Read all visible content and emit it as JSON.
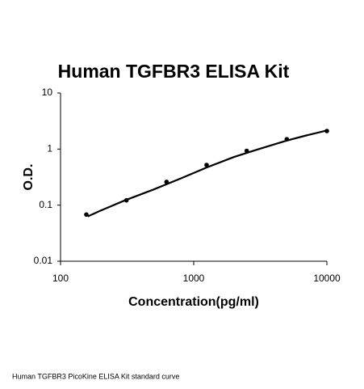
{
  "chart_data": {
    "type": "scatter",
    "title": "Human TGFBR3 ELISA Kit",
    "x_label": "Concentration(pg/ml)",
    "y_label": "O.D.",
    "caption": "Human TGFBR3 PicoKine ELISA Kit standard curve",
    "log_x": true,
    "log_y": true,
    "x": [
      156.25,
      312.5,
      625,
      1250,
      2500,
      5000,
      10000
    ],
    "values": [
      0.068,
      0.122,
      0.26,
      0.52,
      0.93,
      1.5,
      2.1
    ],
    "color": "#000000",
    "trendline": {
      "x": [
        160,
        200,
        300,
        500,
        800,
        1250,
        2000,
        3000,
        5000,
        7000,
        10000
      ],
      "values": [
        0.063,
        0.08,
        0.12,
        0.19,
        0.3,
        0.47,
        0.72,
        0.98,
        1.42,
        1.75,
        2.15
      ]
    },
    "xlim": [
      100,
      10000
    ],
    "xticks": [
      100,
      1000,
      10000
    ],
    "ylim": [
      0.01,
      10
    ],
    "yticks": [
      0.01,
      0.1,
      1,
      10
    ]
  }
}
